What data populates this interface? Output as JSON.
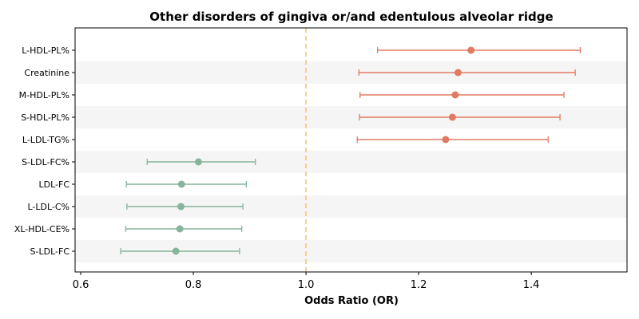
{
  "chart_data": {
    "type": "forest",
    "title": "Other disorders of gingiva or/and edentulous alveolar ridge",
    "xlabel": "Odds Ratio (OR)",
    "xlim": [
      0.59,
      1.57
    ],
    "xticks": [
      0.6,
      0.8,
      1.0,
      1.2,
      1.4
    ],
    "xtick_labels": [
      "0.6",
      "0.8",
      "1.0",
      "1.2",
      "1.4"
    ],
    "reference_line": 1.0,
    "colors": {
      "risk": "#e07b62",
      "protective": "#87b59c",
      "reference": "#f5c07a",
      "band": "#f5f5f5"
    },
    "rows": [
      {
        "label": "L-HDL-PL%",
        "or": 1.293,
        "lo": 1.127,
        "hi": 1.487,
        "group": "risk"
      },
      {
        "label": "Creatinine",
        "or": 1.27,
        "lo": 1.094,
        "hi": 1.478,
        "group": "risk"
      },
      {
        "label": "M-HDL-PL%",
        "or": 1.265,
        "lo": 1.096,
        "hi": 1.458,
        "group": "risk"
      },
      {
        "label": "S-HDL-PL%",
        "or": 1.26,
        "lo": 1.095,
        "hi": 1.451,
        "group": "risk"
      },
      {
        "label": "L-LDL-TG%",
        "or": 1.248,
        "lo": 1.091,
        "hi": 1.43,
        "group": "risk"
      },
      {
        "label": "S-LDL-FC%",
        "or": 0.809,
        "lo": 0.718,
        "hi": 0.91,
        "group": "protective"
      },
      {
        "label": "LDL-FC",
        "or": 0.779,
        "lo": 0.681,
        "hi": 0.894,
        "group": "protective"
      },
      {
        "label": "L-LDL-C%",
        "or": 0.778,
        "lo": 0.682,
        "hi": 0.888,
        "group": "protective"
      },
      {
        "label": "XL-HDL-CE%",
        "or": 0.776,
        "lo": 0.68,
        "hi": 0.886,
        "group": "protective"
      },
      {
        "label": "S-LDL-FC",
        "or": 0.769,
        "lo": 0.671,
        "hi": 0.882,
        "group": "protective"
      }
    ]
  }
}
